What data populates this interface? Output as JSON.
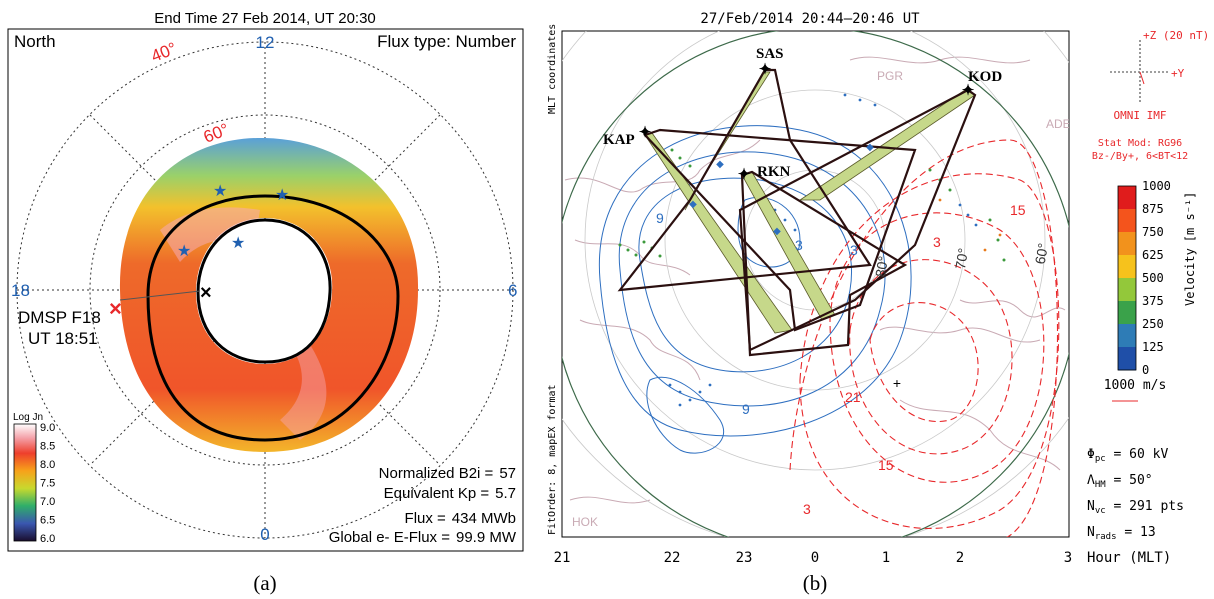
{
  "figure": {
    "panel_a": {
      "title": "End Time 27 Feb 2014, UT 20:30",
      "hemisphere": "North",
      "flux_type": "Flux type: Number",
      "mlt_labels": {
        "top": "12",
        "left": "18",
        "right": "6",
        "bottom": "0"
      },
      "lat_labels": [
        "40°",
        "60°"
      ],
      "satellite": {
        "name": "DMSP F18",
        "time": "UT 18:51"
      },
      "colorbar": {
        "label": "Log Jn",
        "ticks": [
          "9.0",
          "8.5",
          "8.0",
          "7.5",
          "7.0",
          "6.5",
          "6.0"
        ]
      },
      "stats": [
        {
          "label": "Normalized B2i =",
          "value": "57"
        },
        {
          "label": "Equivalent Kp =",
          "value": "5.7"
        },
        {
          "label": "Flux =",
          "value": "434 MWb"
        },
        {
          "label": "Global e- E-Flux =",
          "value": "99.9 MW"
        }
      ],
      "caption": "(a)",
      "colors": {
        "red_marker": "#e8282b",
        "mlt_label": "#1f5fb0",
        "lat_label": "#e8282b",
        "star": "#2060b0"
      }
    },
    "panel_b": {
      "title": "27/Feb/2014 20:44–20:46 UT",
      "side_top": "MLT coordinates",
      "side_bottom": "FitOrder: 8, mapEX format",
      "radars": [
        "SAS",
        "KOD",
        "KAP",
        "RKN"
      ],
      "map_labels": [
        "PGR",
        "ADE",
        "HOK"
      ],
      "contour_labels_blue": [
        "9",
        "9",
        "3",
        "3"
      ],
      "contour_labels_red": [
        "3",
        "15",
        "21",
        "15",
        "3"
      ],
      "lat_contour_labels": [
        "80°",
        "70°",
        "60°"
      ],
      "x_axis": {
        "ticks": [
          "21",
          "22",
          "23",
          "0",
          "1",
          "2",
          "3"
        ],
        "unit": "Hour (MLT)"
      },
      "imf": {
        "z_label": "+Z (20 nT)",
        "y_label": "+Y",
        "source": "OMNI IMF"
      },
      "stat_model": [
        "Stat Mod: RG96",
        "Bz-/By+, 6<BT<12"
      ],
      "velocity_scale": {
        "label": "Velocity",
        "unit": "[m s⁻¹]",
        "ticks": [
          "1000",
          "875",
          "750",
          "625",
          "500",
          "375",
          "250",
          "125",
          "0"
        ]
      },
      "reference_vector": "1000 m/s",
      "params": [
        {
          "symbol": "Φ",
          "sub": "pc",
          "rest": " = 60 kV"
        },
        {
          "symbol": "Λ",
          "sub": "HM",
          "rest": " = 50°"
        },
        {
          "symbol": "N",
          "sub": "vc",
          "rest": " = 291 pts"
        },
        {
          "symbol": "N",
          "sub": "rads",
          "rest": " = 13"
        }
      ],
      "caption": "(b)",
      "colors": {
        "pos_contour": "#2e6fc0",
        "neg_contour": "#e8282b",
        "fov": "#2b1010",
        "beam": "#c6d88a"
      }
    }
  }
}
